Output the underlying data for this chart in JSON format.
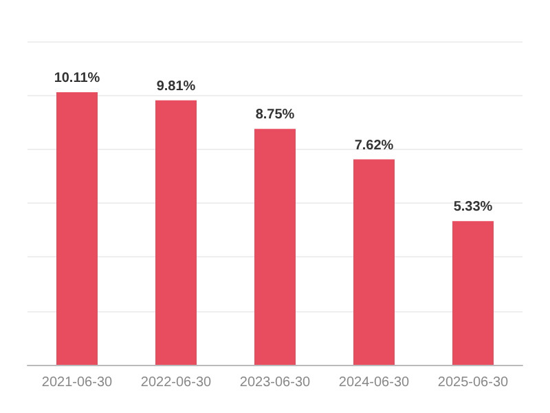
{
  "chart_data": {
    "type": "bar",
    "categories": [
      "2021-06-30",
      "2022-06-30",
      "2023-06-30",
      "2024-06-30",
      "2025-06-30"
    ],
    "values": [
      10.11,
      9.81,
      8.75,
      7.62,
      5.33
    ],
    "value_labels": [
      "10.11%",
      "9.81%",
      "8.75%",
      "7.62%",
      "5.33%"
    ],
    "color": "#e84c5f",
    "ylim": [
      0,
      12
    ],
    "yticks": [
      {
        "value": 0,
        "label": null
      },
      {
        "value": 2,
        "label": null
      },
      {
        "value": 4,
        "label": null
      },
      {
        "value": 6,
        "label": null
      },
      {
        "value": 8,
        "label": null
      },
      {
        "value": 10,
        "label": null
      },
      {
        "value": 12,
        "label": null
      }
    ],
    "grid": "y",
    "tick_labels": "x"
  }
}
